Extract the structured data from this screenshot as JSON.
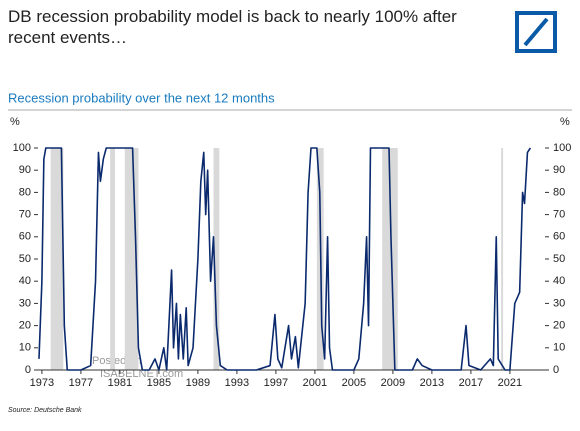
{
  "chart_data": {
    "type": "line",
    "title": "DB recession probability model is back to nearly 100% after recent events…",
    "subtitle": "Recession probability over the next 12 months",
    "y_unit": "%",
    "source": "Source: Deutsche Bank",
    "watermark": [
      "Posted on",
      "ISABELNET.com"
    ],
    "color": "#0b2a6e",
    "recession_color": "#d9d9d9",
    "recessions": [
      [
        1973.9,
        1975.2
      ],
      [
        1980.0,
        1980.5
      ],
      [
        1981.5,
        1982.9
      ],
      [
        1990.6,
        1991.2
      ],
      [
        2001.2,
        2001.9
      ],
      [
        2007.9,
        2009.5
      ],
      [
        2020.1,
        2020.3
      ]
    ],
    "x": [
      1972.7,
      1973.0,
      1973.2,
      1973.4,
      1974.5,
      1975.0,
      1975.3,
      1975.6,
      1976,
      1977,
      1978,
      1978.5,
      1978.8,
      1979,
      1979.3,
      1979.6,
      1980.4,
      1980.7,
      1981,
      1981.5,
      1982.3,
      1982.6,
      1982.9,
      1983.3,
      1984,
      1984.6,
      1985,
      1985.5,
      1985.8,
      1986.3,
      1986.5,
      1986.8,
      1987,
      1987.2,
      1987.5,
      1987.8,
      1988,
      1988.5,
      1989,
      1989.3,
      1989.6,
      1989.8,
      1990,
      1990.3,
      1990.6,
      1990.9,
      1991.3,
      1992,
      1995,
      1996.4,
      1996.9,
      1997.2,
      1997.6,
      1998.3,
      1998.6,
      1999,
      1999.3,
      2000,
      2000.3,
      2000.6,
      2001.2,
      2001.5,
      2001.7,
      2002,
      2002.3,
      2002.5,
      2002.8,
      2005,
      2005.5,
      2006,
      2006.3,
      2006.5,
      2006.7,
      2008.6,
      2008.8,
      2009.2,
      2011,
      2011.5,
      2012,
      2013,
      2016,
      2016.5,
      2016.8,
      2018,
      2019,
      2019.3,
      2019.6,
      2019.8,
      2020.5,
      2021,
      2021.5,
      2022,
      2022.3,
      2022.5,
      2022.8,
      2023.1
    ],
    "values": [
      5,
      40,
      95,
      100,
      100,
      100,
      20,
      0,
      0,
      0,
      2,
      40,
      98,
      85,
      95,
      100,
      100,
      100,
      100,
      100,
      100,
      60,
      10,
      0,
      0,
      5,
      0,
      10,
      0,
      45,
      10,
      30,
      5,
      25,
      5,
      28,
      2,
      10,
      50,
      85,
      98,
      70,
      90,
      40,
      60,
      20,
      2,
      0,
      0,
      2,
      25,
      5,
      1,
      20,
      5,
      15,
      1,
      30,
      80,
      100,
      100,
      80,
      20,
      5,
      60,
      10,
      0,
      0,
      5,
      30,
      60,
      20,
      100,
      100,
      60,
      0,
      0,
      5,
      2,
      0,
      0,
      20,
      2,
      0,
      5,
      2,
      60,
      5,
      0,
      0,
      30,
      35,
      80,
      75,
      98,
      100
    ],
    "xlim": [
      1972.6,
      2024.6
    ],
    "xticks": [
      1973,
      1977,
      1981,
      1985,
      1989,
      1993,
      1997,
      2001,
      2005,
      2009,
      2013,
      2017,
      2021
    ],
    "ylim": [
      0,
      100
    ],
    "yticks": [
      0,
      10,
      20,
      30,
      40,
      50,
      60,
      70,
      80,
      90,
      100
    ]
  }
}
